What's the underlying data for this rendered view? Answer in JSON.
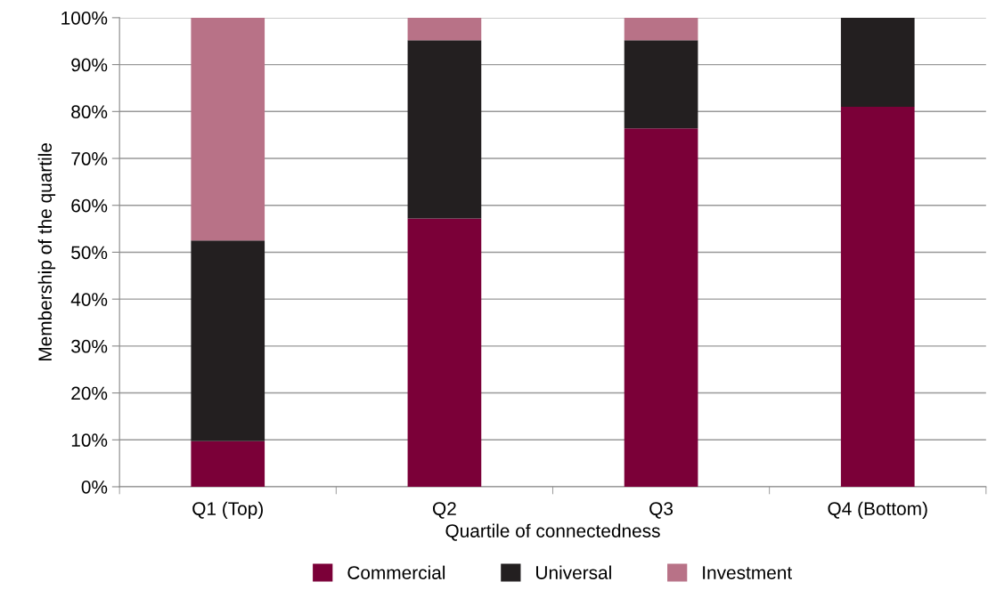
{
  "chart_data": {
    "type": "bar",
    "stacked": true,
    "xlabel": "Quartile of connectedness",
    "ylabel": "Membership of the quartile",
    "categories": [
      "Q1 (Top)",
      "Q2",
      "Q3",
      "Q4 (Bottom)"
    ],
    "series": [
      {
        "name": "Commercial",
        "color": "#7b0038",
        "values": [
          9.7,
          57.2,
          76.4,
          81.0
        ]
      },
      {
        "name": "Universal",
        "color": "#231f20",
        "values": [
          42.8,
          38.0,
          18.8,
          19.0
        ]
      },
      {
        "name": "Investment",
        "color": "#b87287",
        "values": [
          47.5,
          4.8,
          4.8,
          0
        ]
      }
    ],
    "ylim": [
      0,
      100
    ],
    "yticks": [
      {
        "value": 0,
        "label": "0%"
      },
      {
        "value": 10,
        "label": "10%"
      },
      {
        "value": 20,
        "label": "20%"
      },
      {
        "value": 30,
        "label": "30%"
      },
      {
        "value": 40,
        "label": "40%"
      },
      {
        "value": 50,
        "label": "50%"
      },
      {
        "value": 60,
        "label": "60%"
      },
      {
        "value": 70,
        "label": "70%"
      },
      {
        "value": 80,
        "label": "80%"
      },
      {
        "value": 90,
        "label": "90%"
      },
      {
        "value": 100,
        "label": "100%"
      }
    ],
    "grid": "y",
    "legend": "bottom"
  }
}
